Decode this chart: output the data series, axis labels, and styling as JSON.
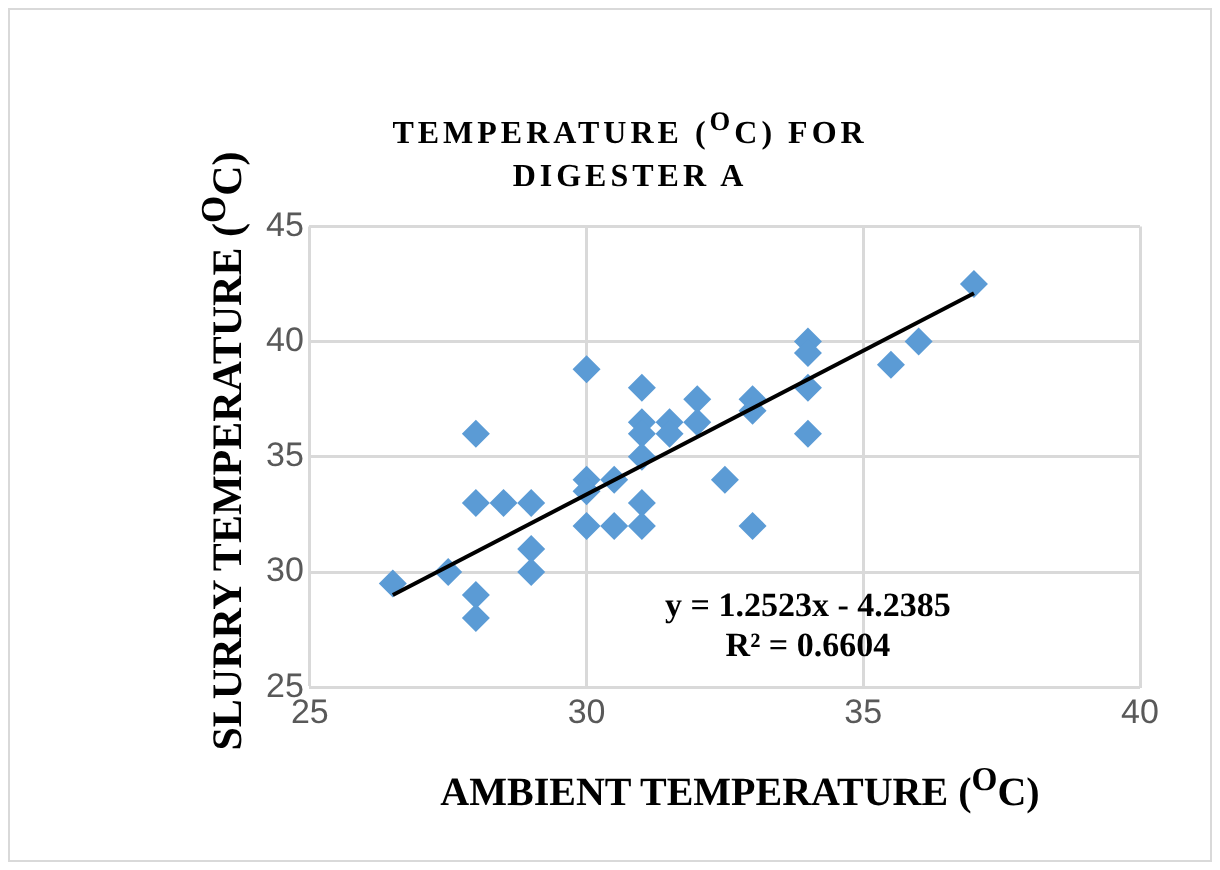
{
  "chart_data": {
    "type": "scatter",
    "title": "TEMPERATURE ($^{O}$C) FOR DIGESTER A",
    "xlabel": "AMBIENT TEMPERATURE ($^{O}$C)",
    "ylabel": "SLURRY TEMPERATURE ($^{O}$C)",
    "xlim": [
      25,
      40
    ],
    "xticks": [
      25,
      30,
      35,
      40
    ],
    "ylim": [
      25,
      45
    ],
    "yticks": [
      25,
      30,
      35,
      40,
      45
    ],
    "grid": true,
    "legend": false,
    "marker": "diamond",
    "series": [
      {
        "color": "#5b9bd5",
        "x": [
          26.5,
          27.5,
          28,
          28,
          28,
          28,
          28.5,
          29,
          29,
          29,
          30,
          30,
          30,
          30,
          30.5,
          30.5,
          31,
          31,
          31,
          31,
          31,
          31,
          31.5,
          31.5,
          32,
          32,
          32.5,
          33,
          33,
          33,
          34,
          34,
          34,
          34,
          35.5,
          36,
          37
        ],
        "values": [
          29.5,
          30,
          29,
          28,
          33,
          36,
          33,
          33,
          31,
          30,
          38.8,
          34,
          33.5,
          32,
          34,
          32,
          38,
          36.5,
          36,
          35,
          33,
          32,
          36.5,
          36,
          37.5,
          36.5,
          34,
          37.5,
          37,
          32,
          40,
          39.5,
          38,
          36,
          39,
          40,
          42.5
        ]
      },
      {
        "type": "line",
        "marker": "none",
        "color": "#000000",
        "x": [
          26.5,
          37
        ],
        "values": [
          29,
          42.1
        ]
      }
    ],
    "annotations": [
      "y = 1.2523x - 4.2385",
      "R² = 0.6604"
    ]
  }
}
